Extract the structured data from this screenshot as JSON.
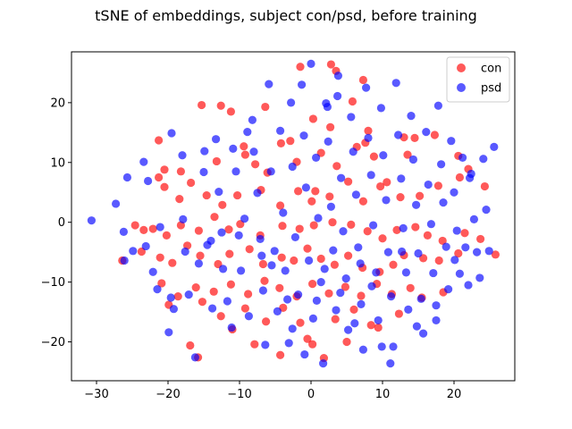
{
  "chart_data": {
    "type": "scatter",
    "title": "tSNE of embeddings, subject con/psd, before training",
    "xlabel": "",
    "ylabel": "",
    "xlim": [
      -33.5,
      28.5
    ],
    "ylim": [
      -26.5,
      28.5
    ],
    "xticks": [
      -30,
      -20,
      -10,
      0,
      10,
      20
    ],
    "xtick_labels": [
      "−30",
      "−20",
      "−10",
      "0",
      "10",
      "20"
    ],
    "yticks": [
      -20,
      -10,
      0,
      10,
      20
    ],
    "ytick_labels": [
      "−20",
      "−10",
      "0",
      "10",
      "20"
    ],
    "grid": false,
    "legend": {
      "placement": "top-right",
      "entries": [
        "con",
        "psd"
      ]
    },
    "colors": {
      "con": "#ff0000",
      "psd": "#0000ff"
    },
    "marker_alpha": 0.65,
    "series": [
      {
        "name": "con",
        "color": "#ff0000",
        "points": [
          [
            -21.3,
            13.7
          ],
          [
            -12.6,
            19.5
          ],
          [
            -6.4,
            19.3
          ],
          [
            -1.5,
            26.0
          ],
          [
            2.8,
            26.4
          ],
          [
            3.5,
            25.3
          ],
          [
            7.3,
            23.8
          ],
          [
            -15.3,
            19.6
          ],
          [
            -11.2,
            18.5
          ],
          [
            5.8,
            20.2
          ],
          [
            2.7,
            15.9
          ],
          [
            -9.4,
            12.7
          ],
          [
            -4.2,
            13.2
          ],
          [
            -2.9,
            13.6
          ],
          [
            0.3,
            17.3
          ],
          [
            8.0,
            15.3
          ],
          [
            13.0,
            14.2
          ],
          [
            17.3,
            14.6
          ],
          [
            -21.3,
            7.5
          ],
          [
            -20.5,
            8.8
          ],
          [
            -18.2,
            8.5
          ],
          [
            -16.8,
            6.6
          ],
          [
            -13.2,
            10.2
          ],
          [
            -9.2,
            11.3
          ],
          [
            -7.8,
            9.7
          ],
          [
            -6.1,
            8.3
          ],
          [
            -2.0,
            10.1
          ],
          [
            1.4,
            11.6
          ],
          [
            3.6,
            9.4
          ],
          [
            6.4,
            12.6
          ],
          [
            7.6,
            13.3
          ],
          [
            8.8,
            11.0
          ],
          [
            13.5,
            11.3
          ],
          [
            14.5,
            14.1
          ],
          [
            20.6,
            11.1
          ],
          [
            -20.5,
            5.9
          ],
          [
            -18.4,
            3.9
          ],
          [
            -14.6,
            4.5
          ],
          [
            -12.4,
            2.9
          ],
          [
            -10.3,
            4.5
          ],
          [
            -7.0,
            5.4
          ],
          [
            -4.3,
            2.8
          ],
          [
            -1.8,
            5.2
          ],
          [
            0.1,
            3.5
          ],
          [
            0.6,
            5.2
          ],
          [
            2.6,
            4.3
          ],
          [
            5.2,
            6.8
          ],
          [
            7.3,
            3.5
          ],
          [
            9.7,
            6.0
          ],
          [
            10.6,
            6.7
          ],
          [
            12.5,
            4.2
          ],
          [
            15.2,
            4.4
          ],
          [
            17.8,
            6.1
          ],
          [
            20.8,
            7.5
          ],
          [
            22.0,
            8.9
          ],
          [
            24.3,
            6.0
          ],
          [
            -24.6,
            -0.5
          ],
          [
            -23.4,
            -1.3
          ],
          [
            -22.1,
            -1.1
          ],
          [
            -20.2,
            -2.2
          ],
          [
            -18.2,
            -0.5
          ],
          [
            -15.7,
            -1.4
          ],
          [
            -13.5,
            0.9
          ],
          [
            -11.5,
            -1.2
          ],
          [
            -9.9,
            -0.3
          ],
          [
            -7.1,
            -2.2
          ],
          [
            -4.0,
            -0.6
          ],
          [
            -1.6,
            -1.1
          ],
          [
            0.4,
            -0.5
          ],
          [
            3.0,
            0.0
          ],
          [
            5.6,
            -0.4
          ],
          [
            7.9,
            -1.5
          ],
          [
            10.0,
            -2.7
          ],
          [
            12.0,
            -1.3
          ],
          [
            14.6,
            -0.8
          ],
          [
            16.3,
            -2.2
          ],
          [
            18.4,
            -3.1
          ],
          [
            21.5,
            -1.8
          ],
          [
            23.7,
            -2.8
          ],
          [
            25.8,
            -5.4
          ],
          [
            -26.4,
            -6.4
          ],
          [
            -23.7,
            -4.9
          ],
          [
            -21.1,
            -5.9
          ],
          [
            -19.4,
            -6.8
          ],
          [
            -17.3,
            -3.9
          ],
          [
            -15.5,
            -5.6
          ],
          [
            -13.0,
            -7.0
          ],
          [
            -11.4,
            -5.3
          ],
          [
            -8.6,
            -4.5
          ],
          [
            -6.7,
            -7.0
          ],
          [
            -4.1,
            -5.9
          ],
          [
            -2.4,
            -6.4
          ],
          [
            -0.5,
            -4.4
          ],
          [
            1.4,
            -6.1
          ],
          [
            3.3,
            -7.1
          ],
          [
            5.2,
            -5.6
          ],
          [
            7.2,
            -7.6
          ],
          [
            9.6,
            -8.3
          ],
          [
            11.5,
            -7.1
          ],
          [
            13.0,
            -5.5
          ],
          [
            15.7,
            -6.0
          ],
          [
            17.9,
            -6.4
          ],
          [
            20.6,
            -5.2
          ],
          [
            -20.9,
            -10.2
          ],
          [
            -18.6,
            -12.4
          ],
          [
            -16.1,
            -10.9
          ],
          [
            -13.6,
            -11.6
          ],
          [
            -11.2,
            -10.4
          ],
          [
            -8.8,
            -12.0
          ],
          [
            -6.5,
            -9.8
          ],
          [
            -4.4,
            -11.0
          ],
          [
            -2.0,
            -12.4
          ],
          [
            0.2,
            -10.3
          ],
          [
            2.5,
            -11.9
          ],
          [
            4.8,
            -10.8
          ],
          [
            7.0,
            -12.3
          ],
          [
            9.2,
            -10.3
          ],
          [
            11.3,
            -12.0
          ],
          [
            13.9,
            -11.0
          ],
          [
            15.5,
            -12.6
          ],
          [
            18.5,
            -11.7
          ],
          [
            -19.9,
            -13.8
          ],
          [
            -15.2,
            -13.3
          ],
          [
            -12.6,
            -15.7
          ],
          [
            -9.2,
            -14.4
          ],
          [
            -6.3,
            -16.6
          ],
          [
            -3.9,
            -14.3
          ],
          [
            -1.5,
            -16.8
          ],
          [
            3.4,
            -16.2
          ],
          [
            6.0,
            -14.6
          ],
          [
            8.4,
            -17.2
          ],
          [
            12.3,
            -15.3
          ],
          [
            -16.9,
            -20.6
          ],
          [
            -15.8,
            -22.6
          ],
          [
            -11.0,
            -17.9
          ],
          [
            -7.9,
            -20.4
          ],
          [
            -4.3,
            -22.2
          ],
          [
            -0.5,
            -19.5
          ],
          [
            0.2,
            -20.4
          ],
          [
            1.8,
            -22.7
          ],
          [
            5.0,
            -20.0
          ],
          [
            9.4,
            -17.6
          ]
        ]
      },
      {
        "name": "psd",
        "color": "#0000ff",
        "points": [
          [
            -30.7,
            0.3
          ],
          [
            -27.3,
            3.1
          ],
          [
            -25.7,
            7.5
          ],
          [
            -26.1,
            -6.4
          ],
          [
            -24.9,
            -4.8
          ],
          [
            -26.2,
            -1.6
          ],
          [
            -22.8,
            6.9
          ],
          [
            -23.1,
            -4.0
          ],
          [
            -22.1,
            -8.3
          ],
          [
            -21.5,
            -11.2
          ],
          [
            -19.9,
            -18.4
          ],
          [
            -19.2,
            -14.5
          ],
          [
            -19.5,
            14.9
          ],
          [
            -18.0,
            11.2
          ],
          [
            -17.6,
            -4.9
          ],
          [
            -17.1,
            -12.1
          ],
          [
            -16.2,
            -22.6
          ],
          [
            -15.7,
            -6.9
          ],
          [
            -14.9,
            11.9
          ],
          [
            -14.5,
            -3.8
          ],
          [
            -13.8,
            -14.4
          ],
          [
            -13.3,
            13.9
          ],
          [
            -12.5,
            -1.7
          ],
          [
            -12.3,
            -7.8
          ],
          [
            -11.7,
            -13.2
          ],
          [
            -11.1,
            -17.6
          ],
          [
            -10.5,
            8.5
          ],
          [
            -10.1,
            -2.2
          ],
          [
            -9.8,
            -8.1
          ],
          [
            -8.9,
            15.1
          ],
          [
            -8.7,
            -15.7
          ],
          [
            -8.0,
            11.8
          ],
          [
            -7.5,
            4.9
          ],
          [
            -7.1,
            -2.8
          ],
          [
            -6.7,
            -11.4
          ],
          [
            -6.4,
            -20.5
          ],
          [
            -5.9,
            23.1
          ],
          [
            -5.6,
            8.5
          ],
          [
            -5.1,
            -4.8
          ],
          [
            -4.7,
            -14.9
          ],
          [
            -4.3,
            15.3
          ],
          [
            -3.9,
            1.6
          ],
          [
            -3.6,
            -8.1
          ],
          [
            -3.1,
            -20.2
          ],
          [
            -2.8,
            20.0
          ],
          [
            -2.6,
            9.3
          ],
          [
            -2.2,
            -2.5
          ],
          [
            -1.8,
            -12.1
          ],
          [
            -1.3,
            23.0
          ],
          [
            -1.0,
            14.5
          ],
          [
            -0.7,
            5.8
          ],
          [
            -0.3,
            -6.4
          ],
          [
            0.0,
            26.5
          ],
          [
            0.3,
            -16.1
          ],
          [
            0.7,
            10.8
          ],
          [
            1.0,
            0.7
          ],
          [
            1.4,
            -10.0
          ],
          [
            1.7,
            -23.6
          ],
          [
            2.1,
            19.9
          ],
          [
            2.4,
            13.5
          ],
          [
            2.8,
            2.6
          ],
          [
            3.1,
            -4.7
          ],
          [
            3.5,
            -14.7
          ],
          [
            3.8,
            24.5
          ],
          [
            4.2,
            7.4
          ],
          [
            4.5,
            -1.5
          ],
          [
            4.9,
            -9.4
          ],
          [
            5.2,
            -18.0
          ],
          [
            5.6,
            17.6
          ],
          [
            5.9,
            11.8
          ],
          [
            6.3,
            4.6
          ],
          [
            6.6,
            -4.2
          ],
          [
            7.0,
            -13.7
          ],
          [
            7.3,
            -21.3
          ],
          [
            7.7,
            22.5
          ],
          [
            8.0,
            14.1
          ],
          [
            8.4,
            7.9
          ],
          [
            8.7,
            -0.5
          ],
          [
            9.1,
            -8.4
          ],
          [
            9.4,
            -16.4
          ],
          [
            9.8,
            19.1
          ],
          [
            10.1,
            11.2
          ],
          [
            10.5,
            3.7
          ],
          [
            10.8,
            -5.0
          ],
          [
            11.2,
            -12.4
          ],
          [
            11.5,
            -20.8
          ],
          [
            11.9,
            23.3
          ],
          [
            12.2,
            14.6
          ],
          [
            12.6,
            7.3
          ],
          [
            12.9,
            -1.0
          ],
          [
            13.3,
            -8.4
          ],
          [
            13.6,
            -14.6
          ],
          [
            14.0,
            17.8
          ],
          [
            14.3,
            10.5
          ],
          [
            14.7,
            2.9
          ],
          [
            15.0,
            -5.2
          ],
          [
            15.4,
            -12.8
          ],
          [
            15.7,
            -18.6
          ],
          [
            16.1,
            15.1
          ],
          [
            16.4,
            6.3
          ],
          [
            16.8,
            -0.3
          ],
          [
            17.1,
            -8.5
          ],
          [
            17.5,
            -16.4
          ],
          [
            17.8,
            19.5
          ],
          [
            18.2,
            9.7
          ],
          [
            18.5,
            3.3
          ],
          [
            18.9,
            -4.1
          ],
          [
            19.2,
            -11.2
          ],
          [
            19.6,
            13.6
          ],
          [
            20.0,
            5.0
          ],
          [
            20.4,
            -1.4
          ],
          [
            20.8,
            -8.6
          ],
          [
            21.2,
            10.8
          ],
          [
            21.6,
            -4.2
          ],
          [
            22.0,
            -10.5
          ],
          [
            22.4,
            8.1
          ],
          [
            22.8,
            0.5
          ],
          [
            23.2,
            -5.0
          ],
          [
            23.6,
            -9.3
          ],
          [
            24.1,
            10.6
          ],
          [
            24.5,
            2.1
          ],
          [
            24.9,
            -4.8
          ],
          [
            25.6,
            12.6
          ],
          [
            -21.1,
            -0.8
          ],
          [
            -17.9,
            0.5
          ],
          [
            -15.0,
            8.4
          ],
          [
            -12.9,
            5.1
          ],
          [
            -9.3,
            0.6
          ],
          [
            -6.9,
            -5.6
          ],
          [
            -3.3,
            -12.9
          ],
          [
            -0.9,
            -22.1
          ],
          [
            1.9,
            -7.8
          ],
          [
            4.1,
            -11.8
          ],
          [
            6.9,
            -6.9
          ],
          [
            9.9,
            -20.8
          ],
          [
            12.7,
            -4.9
          ],
          [
            17.5,
            -13.9
          ],
          [
            -23.4,
            10.1
          ],
          [
            -19.6,
            -12.6
          ],
          [
            -8.2,
            17.1
          ],
          [
            -2.6,
            -17.8
          ],
          [
            0.8,
            -13.1
          ],
          [
            2.3,
            19.3
          ],
          [
            6.1,
            -16.9
          ],
          [
            8.5,
            -10.7
          ],
          [
            11.1,
            -23.6
          ],
          [
            -14.0,
            -3.1
          ],
          [
            -10.9,
            12.3
          ],
          [
            -5.5,
            -7.2
          ],
          [
            3.7,
            21.1
          ],
          [
            14.8,
            -17.4
          ],
          [
            20.1,
            -6.3
          ],
          [
            22.2,
            7.4
          ]
        ]
      }
    ]
  }
}
